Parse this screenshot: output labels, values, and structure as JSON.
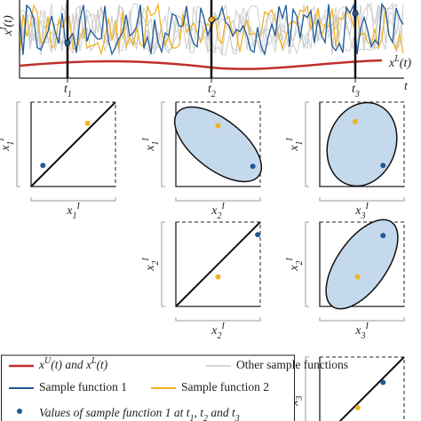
{
  "top": {
    "y_label": [
      {
        "text": "x"
      },
      {
        "sup": "I"
      },
      {
        "text": "(t)"
      }
    ],
    "lower_label": [
      {
        "text": "x"
      },
      {
        "sup": "L"
      },
      {
        "text": "(t)"
      }
    ],
    "t_labels": [
      [
        {
          "text": "t"
        },
        {
          "sub": "1"
        }
      ],
      [
        {
          "text": "t"
        },
        {
          "sub": "2"
        }
      ],
      [
        {
          "text": "t"
        },
        {
          "sub": "3"
        }
      ]
    ],
    "t_axis": "t"
  },
  "panels": [
    {
      "x_label": [
        {
          "text": "x"
        },
        {
          "sub": "1"
        },
        {
          "sup": "I"
        }
      ],
      "y_label": [
        {
          "text": "x"
        },
        {
          "sub": "1"
        },
        {
          "sup": "I"
        }
      ]
    },
    {
      "x_label": [
        {
          "text": "x"
        },
        {
          "sub": "2"
        },
        {
          "sup": "I"
        }
      ],
      "y_label": [
        {
          "text": "x"
        },
        {
          "sub": "1"
        },
        {
          "sup": "I"
        }
      ]
    },
    {
      "x_label": [
        {
          "text": "x"
        },
        {
          "sub": "3"
        },
        {
          "sup": "I"
        }
      ],
      "y_label": [
        {
          "text": "x"
        },
        {
          "sub": "1"
        },
        {
          "sup": "I"
        }
      ]
    },
    {
      "x_label": [
        {
          "text": "x"
        },
        {
          "sub": "2"
        },
        {
          "sup": "I"
        }
      ],
      "y_label": [
        {
          "text": "x"
        },
        {
          "sub": "2"
        },
        {
          "sup": "I"
        }
      ]
    },
    {
      "x_label": [
        {
          "text": "x"
        },
        {
          "sub": "3"
        },
        {
          "sup": "I"
        }
      ],
      "y_label": [
        {
          "text": "x"
        },
        {
          "sub": "2"
        },
        {
          "sup": "I"
        }
      ]
    },
    {
      "y_label": [
        {
          "text": "x"
        },
        {
          "sub": "3"
        },
        {
          "sup": "I"
        }
      ]
    }
  ],
  "legend": [
    [
      {
        "text": "x"
      },
      {
        "sup": "U"
      },
      {
        "text": "(t)  and  x"
      },
      {
        "sup": "L"
      },
      {
        "text": "(t)"
      }
    ],
    [
      {
        "text": "Other sample functions"
      }
    ],
    [
      {
        "text": "Sample function 1"
      }
    ],
    [
      {
        "text": "Sample function 2"
      }
    ],
    [
      {
        "text": "Values of sample function 1 at t"
      },
      {
        "sub": "1"
      },
      {
        "text": ", t"
      },
      {
        "sub": "2"
      },
      {
        "text": " and t"
      },
      {
        "sub": "3"
      }
    ]
  ]
}
